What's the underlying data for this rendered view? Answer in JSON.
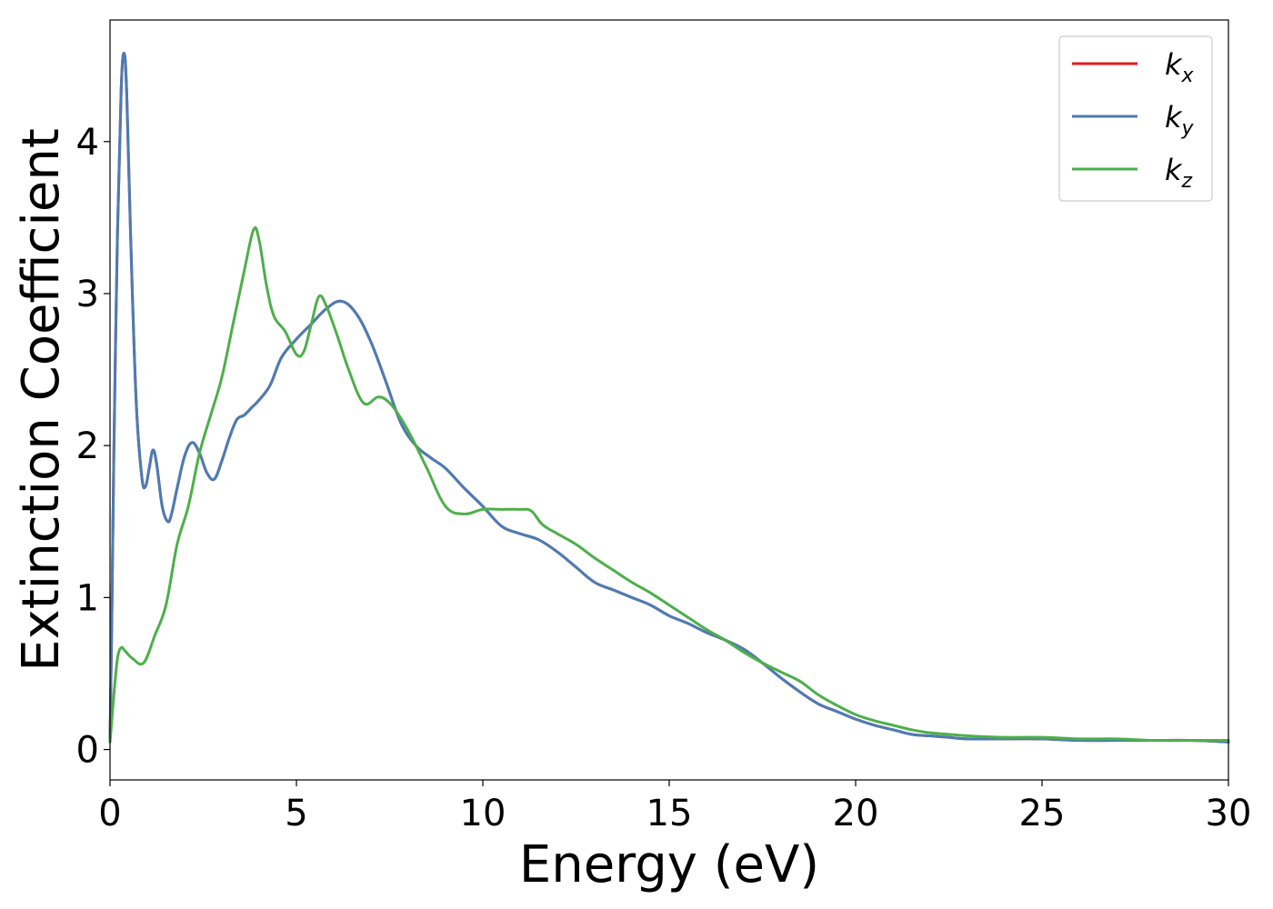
{
  "chart_data": {
    "type": "line",
    "xlabel": "Energy (eV)",
    "ylabel": "Extinction Coefficient",
    "xlim": [
      0,
      30
    ],
    "ylim": [
      -0.2,
      4.8
    ],
    "xticks": [
      0,
      5,
      10,
      15,
      20,
      25,
      30
    ],
    "xtick_labels": [
      "0",
      "5",
      "10",
      "15",
      "20",
      "25",
      "30"
    ],
    "yticks": [
      0,
      1,
      2,
      3,
      4
    ],
    "ytick_labels": [
      "0",
      "1",
      "2",
      "3",
      "4"
    ],
    "grid": false,
    "legend_position": "top-right",
    "series": [
      {
        "key": "kx",
        "label_base": "k",
        "label_sub": "x",
        "color": "#e41a1c",
        "x": [
          0,
          0.05,
          0.1,
          0.2,
          0.3,
          0.38,
          0.45,
          0.55,
          0.7,
          0.85,
          0.95,
          1.05,
          1.15,
          1.25,
          1.4,
          1.55,
          1.65,
          1.8,
          2.0,
          2.2,
          2.4,
          2.6,
          2.8,
          3.0,
          3.2,
          3.4,
          3.6,
          3.8,
          4.0,
          4.3,
          4.6,
          5.0,
          5.4,
          5.8,
          6.2,
          6.6,
          7.0,
          7.4,
          7.8,
          8.2,
          8.6,
          9.0,
          9.5,
          10.0,
          10.5,
          11.0,
          11.5,
          12.0,
          12.5,
          13.0,
          13.5,
          14.0,
          14.5,
          15.0,
          15.5,
          16.0,
          16.5,
          17.0,
          17.5,
          18.0,
          18.5,
          19.0,
          19.5,
          20.0,
          20.5,
          21.0,
          21.5,
          22.0,
          22.5,
          23.0,
          24.0,
          25.0,
          26.0,
          27.0,
          28.0,
          29.0,
          30.0
        ],
        "y": [
          0.05,
          0.9,
          1.9,
          3.4,
          4.35,
          4.58,
          4.3,
          3.4,
          2.3,
          1.8,
          1.73,
          1.85,
          1.97,
          1.88,
          1.6,
          1.5,
          1.55,
          1.72,
          1.93,
          2.02,
          1.95,
          1.82,
          1.78,
          1.9,
          2.05,
          2.17,
          2.2,
          2.25,
          2.3,
          2.4,
          2.58,
          2.7,
          2.8,
          2.9,
          2.95,
          2.87,
          2.68,
          2.42,
          2.15,
          2.0,
          1.92,
          1.85,
          1.72,
          1.6,
          1.47,
          1.42,
          1.38,
          1.3,
          1.2,
          1.1,
          1.05,
          1.0,
          0.95,
          0.88,
          0.83,
          0.77,
          0.72,
          0.66,
          0.57,
          0.47,
          0.38,
          0.3,
          0.25,
          0.2,
          0.16,
          0.13,
          0.1,
          0.09,
          0.08,
          0.07,
          0.07,
          0.07,
          0.06,
          0.06,
          0.06,
          0.06,
          0.05
        ]
      },
      {
        "key": "ky",
        "label_base": "k",
        "label_sub": "y",
        "color": "#4a7db5",
        "x": [
          0,
          0.05,
          0.1,
          0.2,
          0.3,
          0.38,
          0.45,
          0.55,
          0.7,
          0.85,
          0.95,
          1.05,
          1.15,
          1.25,
          1.4,
          1.55,
          1.65,
          1.8,
          2.0,
          2.2,
          2.4,
          2.6,
          2.8,
          3.0,
          3.2,
          3.4,
          3.6,
          3.8,
          4.0,
          4.3,
          4.6,
          5.0,
          5.4,
          5.8,
          6.2,
          6.6,
          7.0,
          7.4,
          7.8,
          8.2,
          8.6,
          9.0,
          9.5,
          10.0,
          10.5,
          11.0,
          11.5,
          12.0,
          12.5,
          13.0,
          13.5,
          14.0,
          14.5,
          15.0,
          15.5,
          16.0,
          16.5,
          17.0,
          17.5,
          18.0,
          18.5,
          19.0,
          19.5,
          20.0,
          20.5,
          21.0,
          21.5,
          22.0,
          22.5,
          23.0,
          24.0,
          25.0,
          26.0,
          27.0,
          28.0,
          29.0,
          30.0
        ],
        "y": [
          0.05,
          0.9,
          1.9,
          3.4,
          4.35,
          4.58,
          4.3,
          3.4,
          2.3,
          1.8,
          1.73,
          1.85,
          1.97,
          1.88,
          1.6,
          1.5,
          1.55,
          1.72,
          1.93,
          2.02,
          1.95,
          1.82,
          1.78,
          1.9,
          2.05,
          2.17,
          2.2,
          2.25,
          2.3,
          2.4,
          2.58,
          2.7,
          2.8,
          2.9,
          2.95,
          2.87,
          2.68,
          2.42,
          2.15,
          2.0,
          1.92,
          1.85,
          1.72,
          1.6,
          1.47,
          1.42,
          1.38,
          1.3,
          1.2,
          1.1,
          1.05,
          1.0,
          0.95,
          0.88,
          0.83,
          0.77,
          0.72,
          0.66,
          0.57,
          0.47,
          0.38,
          0.3,
          0.25,
          0.2,
          0.16,
          0.13,
          0.1,
          0.09,
          0.08,
          0.07,
          0.07,
          0.07,
          0.06,
          0.06,
          0.06,
          0.06,
          0.05
        ]
      },
      {
        "key": "kz",
        "label_base": "k",
        "label_sub": "z",
        "color": "#4daf4a",
        "x": [
          0,
          0.1,
          0.2,
          0.3,
          0.4,
          0.6,
          0.9,
          1.2,
          1.5,
          1.8,
          2.1,
          2.4,
          2.7,
          3.0,
          3.3,
          3.6,
          3.85,
          4.0,
          4.2,
          4.4,
          4.7,
          5.0,
          5.2,
          5.4,
          5.6,
          5.8,
          6.1,
          6.4,
          6.8,
          7.2,
          7.5,
          7.8,
          8.1,
          8.5,
          9.0,
          9.5,
          10.0,
          10.5,
          11.0,
          11.3,
          11.6,
          12.0,
          12.5,
          13.0,
          13.5,
          14.0,
          14.5,
          15.0,
          15.5,
          16.0,
          16.5,
          17.0,
          17.5,
          18.0,
          18.5,
          19.0,
          19.5,
          20.0,
          20.5,
          21.0,
          21.5,
          22.0,
          22.5,
          23.0,
          24.0,
          25.0,
          26.0,
          27.0,
          28.0,
          29.0,
          30.0
        ],
        "y": [
          0.05,
          0.35,
          0.6,
          0.67,
          0.65,
          0.6,
          0.57,
          0.75,
          0.95,
          1.35,
          1.6,
          1.95,
          2.2,
          2.45,
          2.8,
          3.15,
          3.42,
          3.35,
          3.05,
          2.85,
          2.75,
          2.6,
          2.62,
          2.8,
          2.98,
          2.92,
          2.72,
          2.5,
          2.28,
          2.32,
          2.28,
          2.18,
          2.05,
          1.85,
          1.6,
          1.55,
          1.58,
          1.58,
          1.58,
          1.57,
          1.48,
          1.42,
          1.35,
          1.26,
          1.18,
          1.1,
          1.03,
          0.95,
          0.87,
          0.79,
          0.72,
          0.64,
          0.57,
          0.51,
          0.45,
          0.36,
          0.29,
          0.23,
          0.19,
          0.16,
          0.13,
          0.11,
          0.1,
          0.09,
          0.08,
          0.08,
          0.07,
          0.07,
          0.06,
          0.06,
          0.06
        ]
      }
    ]
  }
}
